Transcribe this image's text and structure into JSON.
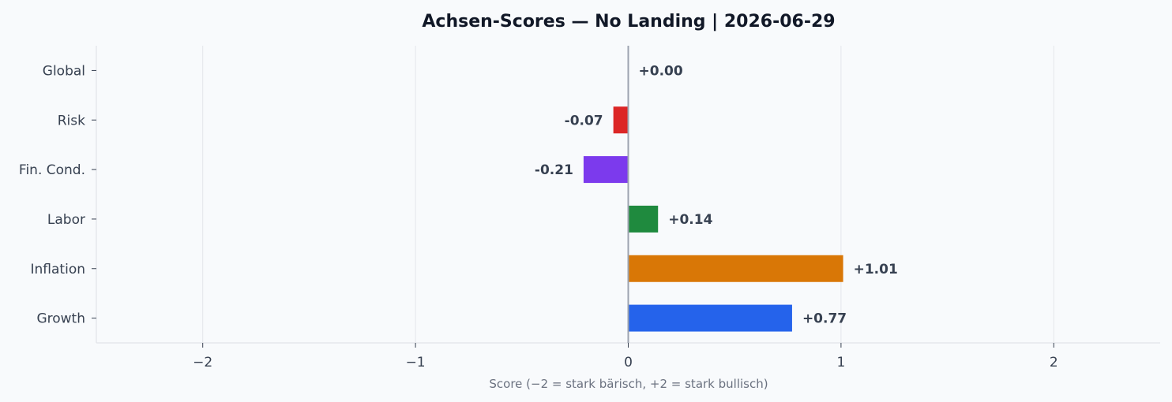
{
  "chart_data": {
    "type": "bar",
    "orientation": "horizontal",
    "title": "Achsen-Scores — No Landing | 2026-06-29",
    "xlabel": "Score (−2 = stark bärisch, +2 = stark bullisch)",
    "ylabel": "",
    "xlim": [
      -2.5,
      2.5
    ],
    "xticks": [
      -2,
      -1,
      0,
      1,
      2
    ],
    "xtick_labels": [
      "−2",
      "−1",
      "0",
      "1",
      "2"
    ],
    "grid": "vertical",
    "categories": [
      "Global",
      "Risk",
      "Fin. Cond.",
      "Labor",
      "Inflation",
      "Growth"
    ],
    "values": [
      0.0,
      -0.07,
      -0.21,
      0.14,
      1.01,
      0.77
    ],
    "value_labels": [
      "+0.00",
      "-0.07",
      "-0.21",
      "+0.14",
      "+1.01",
      "+0.77"
    ],
    "colors": [
      "#9ca3af",
      "#dc2626",
      "#7c3aed",
      "#1f8a3e",
      "#d97706",
      "#2563eb"
    ]
  }
}
